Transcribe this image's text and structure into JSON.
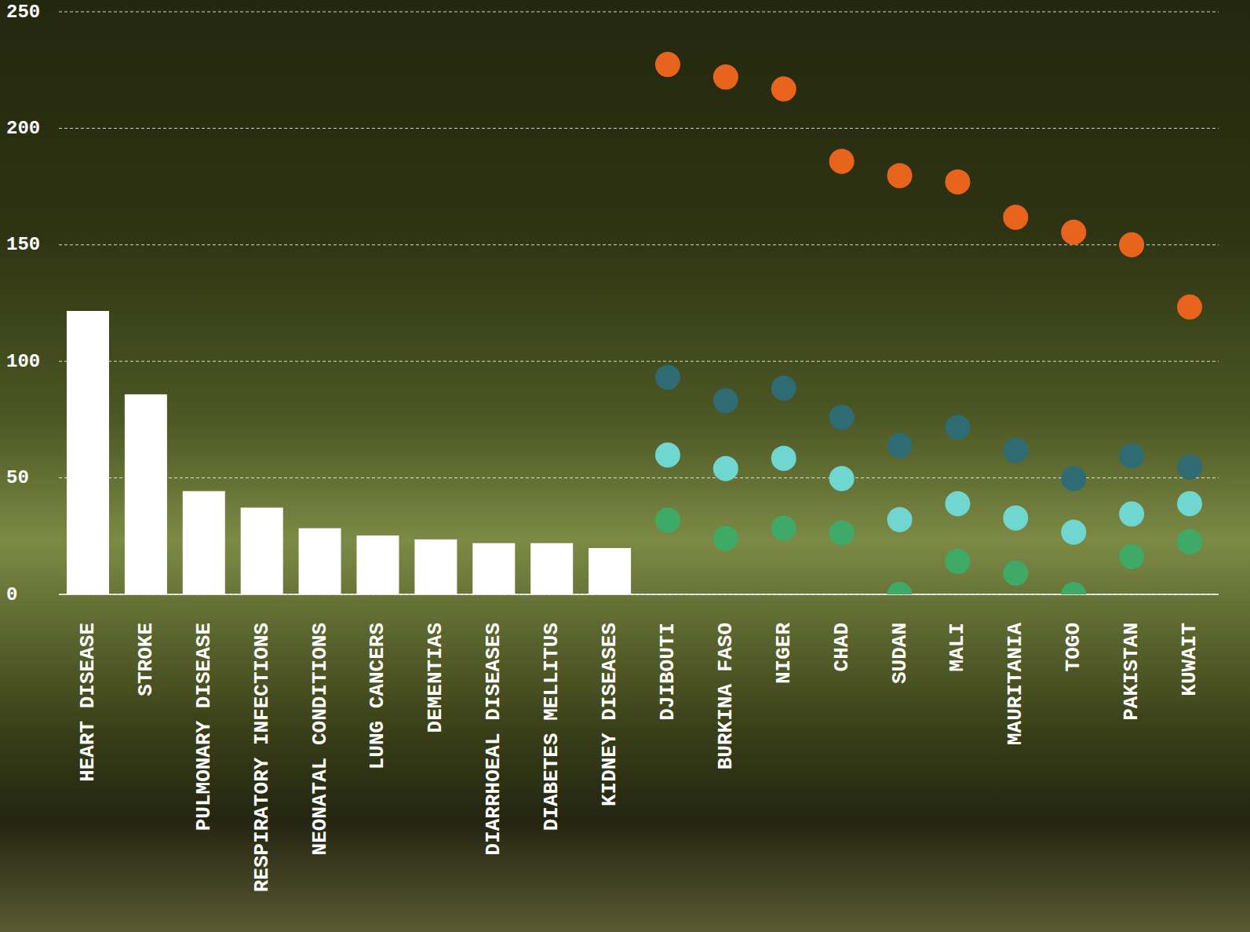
{
  "chart_data": {
    "type": "bar",
    "categories": [
      "HEART DISEASE",
      "STROKE",
      "PULMONARY DISEASE",
      "RESPIRATORY INFECTIONS",
      "NEONATAL CONDITIONS",
      "LUNG CANCERS",
      "DEMENTIAS",
      "DIARRHOEAL DISEASES",
      "DIABETES MELLITUS",
      "KIDNEY DISEASES",
      "DJIBOUTI",
      "BURKINA FASO",
      "NIGER",
      "CHAD",
      "SUDAN",
      "MALI",
      "MAURITANIA",
      "TOGO",
      "PAKISTAN",
      "KUWAIT"
    ],
    "series": [
      {
        "type": "bar",
        "color": "#ffffff",
        "values": [
          121.6,
          85.8,
          44.3,
          37.2,
          28.4,
          25.3,
          23.6,
          22,
          22,
          19.9,
          null,
          null,
          null,
          null,
          null,
          null,
          null,
          null,
          null,
          null
        ]
      },
      {
        "type": "scatter",
        "marker": "circle",
        "color": "#e8631c",
        "values": [
          null,
          null,
          null,
          null,
          null,
          null,
          null,
          null,
          null,
          null,
          227.4,
          222,
          216.9,
          185.8,
          179.7,
          177,
          161.8,
          155.4,
          150,
          123.3
        ]
      },
      {
        "type": "scatter",
        "marker": "circle",
        "color": "#2f6b72",
        "values": [
          null,
          null,
          null,
          null,
          null,
          null,
          null,
          null,
          null,
          null,
          93.2,
          83.1,
          88.5,
          76,
          63.9,
          71.6,
          61.8,
          49.7,
          59.5,
          54.7
        ]
      },
      {
        "type": "scatter",
        "marker": "circle",
        "color": "#6fd6d0",
        "values": [
          null,
          null,
          null,
          null,
          null,
          null,
          null,
          null,
          null,
          null,
          59.8,
          54,
          58.4,
          49.7,
          32.1,
          38.9,
          32.8,
          26.7,
          34.5,
          38.9
        ]
      },
      {
        "type": "scatter",
        "marker": "circle",
        "color": "#3faa68",
        "values": [
          null,
          null,
          null,
          null,
          null,
          null,
          null,
          null,
          null,
          null,
          31.8,
          24,
          28.4,
          26.4,
          0,
          14.2,
          9.1,
          0,
          16.2,
          22.6
        ]
      }
    ],
    "ylim": [
      0,
      250
    ],
    "yticks": [
      0,
      50,
      100,
      150,
      200,
      250
    ],
    "grid": true
  }
}
